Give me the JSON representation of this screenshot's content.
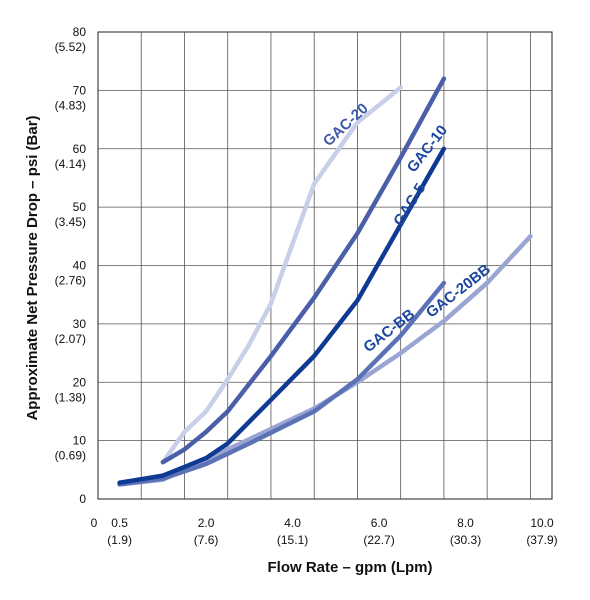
{
  "chart_data": {
    "type": "line",
    "title": "",
    "xlabel": "Flow Rate – gpm (Lpm)",
    "ylabel": "Approximate Net Pressure Drop – psi (Bar)",
    "xlim": [
      0,
      10.5
    ],
    "ylim": [
      0,
      80
    ],
    "grid": true,
    "x_zero_label": "0",
    "x_ticks": [
      {
        "value": 0.5,
        "label": "0.5",
        "sub": "(1.9)"
      },
      {
        "value": 2.5,
        "label": "2.0",
        "sub": "(7.6)"
      },
      {
        "value": 4.5,
        "label": "4.0",
        "sub": "(15.1)"
      },
      {
        "value": 6.5,
        "label": "6.0",
        "sub": "(22.7)"
      },
      {
        "value": 8.5,
        "label": "8.0",
        "sub": "(30.3)"
      },
      {
        "value": 10.5,
        "label": "10.0",
        "sub": "(37.9)"
      }
    ],
    "x_grid": [
      0,
      1,
      2,
      3,
      4,
      5,
      6,
      7,
      8,
      9,
      10
    ],
    "y_ticks": [
      {
        "value": 0,
        "label": "0",
        "sub": ""
      },
      {
        "value": 10,
        "label": "10",
        "sub": "(0.69)"
      },
      {
        "value": 20,
        "label": "20",
        "sub": "(1.38)"
      },
      {
        "value": 30,
        "label": "30",
        "sub": "(2.07)"
      },
      {
        "value": 40,
        "label": "40",
        "sub": "(2.76)"
      },
      {
        "value": 50,
        "label": "50",
        "sub": "(3.45)"
      },
      {
        "value": 60,
        "label": "60",
        "sub": "(4.14)"
      },
      {
        "value": 70,
        "label": "70",
        "sub": "(4.83)"
      },
      {
        "value": 80,
        "label": "80",
        "sub": "(5.52)"
      }
    ],
    "series": [
      {
        "name": "GAC-20",
        "color": "#c9cfe8",
        "points": [
          [
            1.5,
            6.3
          ],
          [
            2.0,
            11.5
          ],
          [
            2.5,
            15.0
          ],
          [
            3.0,
            20.5
          ],
          [
            3.5,
            26.5
          ],
          [
            4.0,
            33.5
          ],
          [
            5.0,
            54.0
          ],
          [
            6.0,
            64.5
          ],
          [
            7.0,
            70.5
          ]
        ],
        "label_x": 5.8,
        "label_y": 63.5,
        "label_angle": -43
      },
      {
        "name": "GAC-10",
        "color": "#4a5fa8",
        "points": [
          [
            1.5,
            6.3
          ],
          [
            2.0,
            8.5
          ],
          [
            2.5,
            11.5
          ],
          [
            3.0,
            15.0
          ],
          [
            4.0,
            24.5
          ],
          [
            5.0,
            34.5
          ],
          [
            6.0,
            45.5
          ],
          [
            7.0,
            58.5
          ],
          [
            8.0,
            72.0
          ]
        ],
        "label_x": 7.7,
        "label_y": 59.5,
        "label_angle": -52
      },
      {
        "name": "GAC-5",
        "color": "#0f3a93",
        "points": [
          [
            0.5,
            2.8
          ],
          [
            1.5,
            4.0
          ],
          [
            2.0,
            5.5
          ],
          [
            2.5,
            7.0
          ],
          [
            3.0,
            9.5
          ],
          [
            4.0,
            17.0
          ],
          [
            5.0,
            24.5
          ],
          [
            6.0,
            34.0
          ],
          [
            8.0,
            60.0
          ]
        ],
        "label_x": 7.3,
        "label_y": 50.0,
        "label_angle": -58
      },
      {
        "name": "GAC-BB",
        "color": "#5c72b6",
        "points": [
          [
            0.5,
            2.5
          ],
          [
            1.5,
            3.5
          ],
          [
            2.5,
            6.0
          ],
          [
            3.5,
            9.5
          ],
          [
            5.0,
            15.0
          ],
          [
            6.0,
            20.5
          ],
          [
            7.0,
            28.0
          ],
          [
            8.0,
            37.0
          ]
        ],
        "label_x": 6.8,
        "label_y": 28.2,
        "label_angle": -38
      },
      {
        "name": "GAC-20BB",
        "color": "#9aa5d3",
        "points": [
          [
            0.5,
            2.5
          ],
          [
            1.5,
            3.3
          ],
          [
            3.0,
            8.5
          ],
          [
            4.0,
            12.0
          ],
          [
            5.0,
            15.5
          ],
          [
            6.0,
            20.0
          ],
          [
            7.0,
            25.0
          ],
          [
            8.0,
            30.5
          ],
          [
            9.0,
            37.0
          ],
          [
            10.0,
            45.0
          ]
        ],
        "label_x": 8.4,
        "label_y": 35.0,
        "label_angle": -38
      }
    ]
  }
}
